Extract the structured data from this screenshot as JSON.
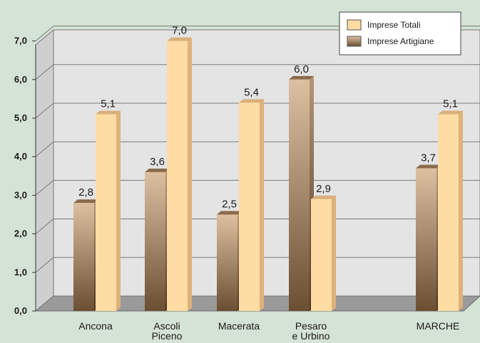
{
  "chart_data": {
    "type": "bar",
    "categories": [
      {
        "lines": [
          "Ancona"
        ]
      },
      {
        "lines": [
          "Ascoli",
          "Piceno"
        ]
      },
      {
        "lines": [
          "Macerata"
        ]
      },
      {
        "lines": [
          "Pesaro",
          "e Urbino"
        ]
      },
      {
        "lines": [
          "MARCHE"
        ]
      }
    ],
    "series": [
      {
        "name": "Imprese Artigiane",
        "values": [
          2.8,
          3.6,
          2.5,
          6.0,
          3.7
        ],
        "labels": [
          "2,8",
          "3,6",
          "2,5",
          "6,0",
          "3,7"
        ]
      },
      {
        "name": "Imprese Totali",
        "values": [
          5.1,
          7.0,
          5.4,
          2.9,
          5.1
        ],
        "labels": [
          "5,1",
          "7,0",
          "5,4",
          "2,9",
          "5,1"
        ]
      }
    ],
    "yticks": [
      {
        "value": 0,
        "label": "0,0"
      },
      {
        "value": 1,
        "label": "1,0"
      },
      {
        "value": 2,
        "label": "2,0"
      },
      {
        "value": 3,
        "label": "3,0"
      },
      {
        "value": 4,
        "label": "4,0"
      },
      {
        "value": 5,
        "label": "5,0"
      },
      {
        "value": 6,
        "label": "6,0"
      },
      {
        "value": 7,
        "label": "7,0"
      }
    ],
    "ylim": [
      0,
      7.5
    ],
    "grid": true,
    "legend_position": "top-right",
    "title": "",
    "xlabel": "",
    "ylabel": ""
  },
  "legend": [
    {
      "label": "Imprese Totali",
      "swatch": "light"
    },
    {
      "label": "Imprese Artigiane",
      "swatch": "dark"
    }
  ],
  "colors": {
    "background": "#d5e2d6",
    "plot_face": "#e4e4e4",
    "plot_side": "#cfcfcf",
    "floor": "#9a9a9a",
    "light_bar": "#ffdca3",
    "dark_bar_top": "#dcc0a0",
    "dark_bar_bottom": "#6b4f33"
  }
}
